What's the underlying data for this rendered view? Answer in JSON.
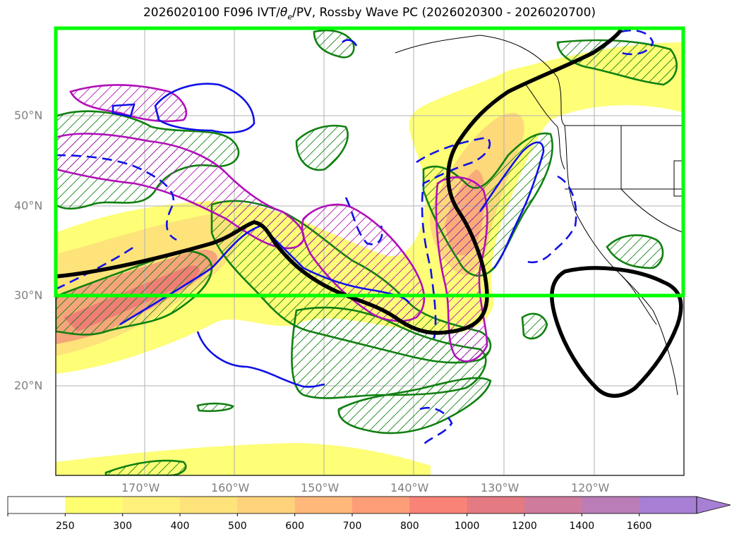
{
  "title": {
    "prefix": "2026020100 F096 IVT/",
    "theta": "θ",
    "sub": "e",
    "suffix": "/PV, Rossby Wave PC (2026020300 - 2026020700)"
  },
  "axes": {
    "lat_labels": [
      "50°N",
      "40°N",
      "30°N",
      "20°N"
    ],
    "lon_labels": [
      "170°W",
      "160°W",
      "150°W",
      "140°W",
      "130°W",
      "120°W"
    ]
  },
  "colorbar": {
    "ticks": [
      "250",
      "300",
      "400",
      "500",
      "600",
      "700",
      "800",
      "1000",
      "1200",
      "1400",
      "1600"
    ],
    "colors": [
      "#ffffff",
      "#fefe70",
      "#fef07a",
      "#fee27a",
      "#fdd27a",
      "#fdb87a",
      "#fd9e78",
      "#f98377",
      "#e47a82",
      "#cf7b9d",
      "#bb7db8",
      "#a77fd4"
    ]
  },
  "legend_colors": {
    "ivt_fill": "#fde97a",
    "core": "#f27575",
    "green_contour": "#108010",
    "blue_contour": "#1010e8",
    "magenta_contour": "#b010b8",
    "black_contour": "#000000",
    "box": "#00ff00"
  }
}
